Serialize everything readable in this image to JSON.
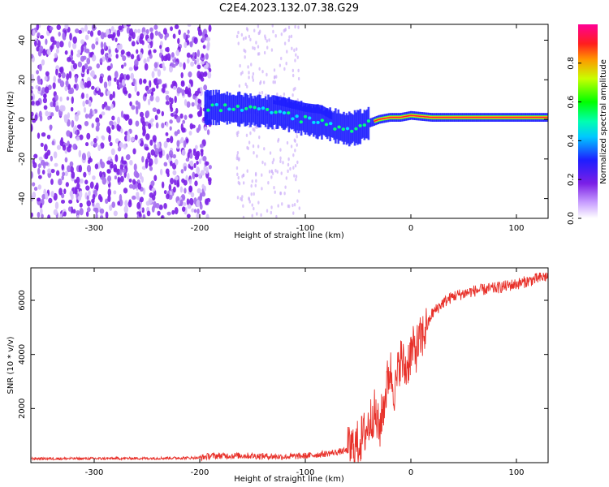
{
  "figure_title": "C2E4.2023.132.07.38.G29",
  "colors": {
    "snr_line": "#e8312a",
    "spectrogram_blue": "#1e1eff",
    "spectrogram_purple": "#7b1fe6",
    "spectrogram_ridge_red": "#ff1e3c"
  },
  "chart_data": [
    {
      "type": "heatmap",
      "title": "",
      "xlabel": "Height of straight line (km)",
      "ylabel": "Frequency (Hz)",
      "xlim": [
        -360,
        130
      ],
      "ylim": [
        -50,
        48
      ],
      "xticks": [
        -300,
        -200,
        -100,
        0,
        100
      ],
      "yticks": [
        -40,
        -20,
        0,
        20,
        40
      ],
      "colorbar": {
        "label": "Normalized spectral amplitude",
        "range": [
          0,
          1
        ],
        "ticks": [
          "0.0",
          "0.2",
          "0.4",
          "0.6",
          "0.8"
        ],
        "colormap": "rainbow (white → purple → blue → cyan → green → yellow → red → magenta)"
      },
      "ridge": {
        "description": "Main spectral ridge frequency vs height",
        "points": [
          [
            -195,
            6
          ],
          [
            -180,
            6
          ],
          [
            -160,
            5
          ],
          [
            -140,
            4
          ],
          [
            -120,
            3
          ],
          [
            -100,
            0
          ],
          [
            -80,
            -2
          ],
          [
            -60,
            -5
          ],
          [
            -50,
            -4
          ],
          [
            -40,
            -2
          ],
          [
            -30,
            0
          ],
          [
            -20,
            1
          ],
          [
            -10,
            1
          ],
          [
            0,
            2
          ],
          [
            20,
            1
          ],
          [
            60,
            1
          ],
          [
            100,
            1
          ],
          [
            130,
            1
          ]
        ],
        "upper_branch": [
          [
            -130,
            10
          ],
          [
            -115,
            8
          ],
          [
            -100,
            6
          ],
          [
            -85,
            5
          ],
          [
            -75,
            2
          ]
        ],
        "noise_region_x": [
          -360,
          -190
        ]
      }
    },
    {
      "type": "line",
      "title": "",
      "xlabel": "Height of straight line (km)",
      "ylabel": "SNR (10 * v/v)",
      "xlim": [
        -360,
        130
      ],
      "ylim": [
        0,
        7200
      ],
      "xticks": [
        -300,
        -200,
        -100,
        0,
        100
      ],
      "yticks": [
        2000,
        4000,
        6000
      ],
      "series": [
        {
          "trend": {
            "x": [
              -360,
              -300,
              -250,
              -200,
              -190,
              -160,
              -120,
              -100,
              -80,
              -60,
              -50,
              -45,
              -40,
              -35,
              -30,
              -25,
              -20,
              -15,
              -10,
              -5,
              0,
              5,
              10,
              15,
              20,
              30,
              40,
              60,
              80,
              100,
              110,
              120,
              130
            ],
            "y": [
              150,
              150,
              160,
              180,
              250,
              260,
              220,
              250,
              330,
              450,
              700,
              1000,
              1400,
              1900,
              1200,
              2300,
              3500,
              2600,
              3900,
              3400,
              4100,
              4200,
              4600,
              5000,
              5500,
              5900,
              6150,
              6350,
              6450,
              6600,
              6700,
              6800,
              6900
            ]
          }
        }
      ]
    }
  ]
}
